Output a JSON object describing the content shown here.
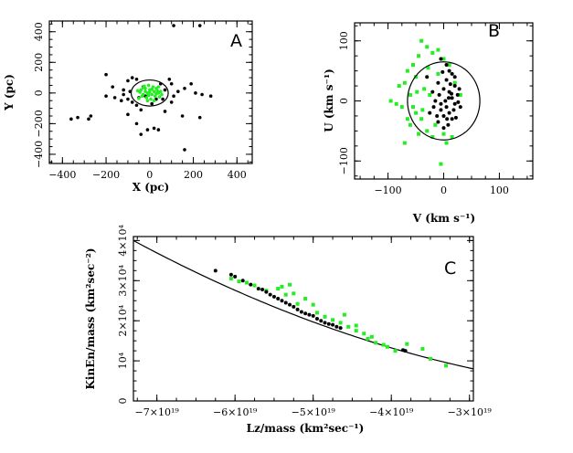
{
  "chart_data": [
    {
      "id": "A",
      "type": "scatter",
      "panel_label": "A",
      "xlabel": "X (pc)",
      "ylabel": "Y (pc)",
      "xlim": [
        -460,
        470
      ],
      "ylim": [
        -460,
        470
      ],
      "xticks": [
        -400,
        -200,
        0,
        200,
        400
      ],
      "yticks": [
        -400,
        -200,
        0,
        200,
        400
      ],
      "xtick_labels": [
        "−400",
        "−200",
        "0",
        "200",
        "400"
      ],
      "ytick_labels": [
        "−400",
        "−200",
        "0",
        "200",
        "400"
      ],
      "circle": {
        "center": [
          0,
          0
        ],
        "radius": 85
      },
      "series": [
        {
          "name": "black",
          "color": "#000000",
          "points": [
            [
              110,
              440
            ],
            [
              230,
              440
            ],
            [
              -200,
              120
            ],
            [
              -80,
              100
            ],
            [
              -60,
              90
            ],
            [
              -100,
              80
            ],
            [
              -170,
              40
            ],
            [
              -120,
              20
            ],
            [
              -90,
              10
            ],
            [
              -120,
              -10
            ],
            [
              -200,
              -20
            ],
            [
              -160,
              -30
            ],
            [
              -100,
              -40
            ],
            [
              -130,
              -50
            ],
            [
              -80,
              -60
            ],
            [
              -60,
              -80
            ],
            [
              -40,
              -110
            ],
            [
              -100,
              -140
            ],
            [
              -330,
              -160
            ],
            [
              -360,
              -170
            ],
            [
              -270,
              -150
            ],
            [
              -280,
              -170
            ],
            [
              -60,
              -200
            ],
            [
              -10,
              -240
            ],
            [
              20,
              -230
            ],
            [
              -40,
              -270
            ],
            [
              40,
              -240
            ],
            [
              70,
              -120
            ],
            [
              100,
              -60
            ],
            [
              110,
              -20
            ],
            [
              130,
              10
            ],
            [
              160,
              30
            ],
            [
              190,
              60
            ],
            [
              210,
              0
            ],
            [
              240,
              -10
            ],
            [
              280,
              -20
            ],
            [
              100,
              60
            ],
            [
              90,
              90
            ],
            [
              150,
              -150
            ],
            [
              230,
              -160
            ],
            [
              160,
              -370
            ],
            [
              70,
              20
            ],
            [
              50,
              60
            ],
            [
              -30,
              40
            ],
            [
              -20,
              -20
            ],
            [
              30,
              -40
            ],
            [
              10,
              -70
            ],
            [
              -50,
              -30
            ],
            [
              60,
              -40
            ]
          ]
        },
        {
          "name": "green",
          "color": "#22ee22",
          "points": [
            [
              -40,
              20
            ],
            [
              -30,
              -10
            ],
            [
              -20,
              30
            ],
            [
              -10,
              0
            ],
            [
              0,
              20
            ],
            [
              10,
              -10
            ],
            [
              20,
              10
            ],
            [
              30,
              30
            ],
            [
              40,
              0
            ],
            [
              -35,
              -20
            ],
            [
              -15,
              -30
            ],
            [
              5,
              -40
            ],
            [
              25,
              -20
            ],
            [
              45,
              -25
            ],
            [
              -45,
              5
            ],
            [
              -25,
              45
            ],
            [
              -5,
              50
            ],
            [
              15,
              40
            ],
            [
              35,
              15
            ],
            [
              50,
              10
            ],
            [
              -50,
              -35
            ],
            [
              -10,
              -50
            ],
            [
              20,
              -50
            ],
            [
              0,
              5
            ],
            [
              -20,
              10
            ],
            [
              30,
              -5
            ],
            [
              10,
              25
            ],
            [
              -30,
              35
            ],
            [
              40,
              40
            ],
            [
              -55,
              15
            ],
            [
              55,
              -10
            ],
            [
              -5,
              -15
            ]
          ]
        }
      ]
    },
    {
      "id": "B",
      "type": "scatter",
      "panel_label": "B",
      "xlabel": "V (km s⁻¹)",
      "ylabel": "U (km s⁻¹)",
      "xlim": [
        -160,
        160
      ],
      "ylim": [
        -130,
        130
      ],
      "xticks": [
        -100,
        0,
        100
      ],
      "yticks": [
        -100,
        0,
        100
      ],
      "xtick_labels": [
        "−100",
        "0",
        "100"
      ],
      "ytick_labels": [
        "−100",
        "0",
        "100"
      ],
      "circle": {
        "center": [
          0,
          0
        ],
        "radius": 65
      },
      "series": [
        {
          "name": "black",
          "color": "#000000",
          "points": [
            [
              -5,
              70
            ],
            [
              5,
              60
            ],
            [
              10,
              50
            ],
            [
              20,
              40
            ],
            [
              -10,
              30
            ],
            [
              0,
              20
            ],
            [
              10,
              15
            ],
            [
              15,
              5
            ],
            [
              20,
              -5
            ],
            [
              5,
              -10
            ],
            [
              -5,
              -15
            ],
            [
              0,
              -25
            ],
            [
              10,
              -20
            ],
            [
              15,
              -30
            ],
            [
              -10,
              -35
            ],
            [
              20,
              25
            ],
            [
              25,
              10
            ],
            [
              30,
              -10
            ],
            [
              -15,
              0
            ],
            [
              -20,
              15
            ],
            [
              5,
              35
            ],
            [
              -25,
              -20
            ],
            [
              -5,
              -5
            ],
            [
              8,
              -40
            ],
            [
              12,
              28
            ],
            [
              18,
              -15
            ],
            [
              -8,
              10
            ],
            [
              28,
              20
            ],
            [
              3,
              0
            ],
            [
              -12,
              -25
            ],
            [
              22,
              -28
            ],
            [
              -30,
              40
            ],
            [
              15,
              45
            ],
            [
              -2,
              48
            ],
            [
              6,
              -30
            ],
            [
              14,
              12
            ],
            [
              -18,
              -10
            ],
            [
              26,
              -2
            ],
            [
              0,
              -45
            ],
            [
              9,
              5
            ]
          ]
        },
        {
          "name": "green",
          "color": "#22ee22",
          "points": [
            [
              -40,
              100
            ],
            [
              -30,
              90
            ],
            [
              -20,
              80
            ],
            [
              -10,
              85
            ],
            [
              0,
              70
            ],
            [
              10,
              60
            ],
            [
              -45,
              75
            ],
            [
              -55,
              60
            ],
            [
              -65,
              50
            ],
            [
              -50,
              40
            ],
            [
              -70,
              30
            ],
            [
              -80,
              25
            ],
            [
              -60,
              10
            ],
            [
              -75,
              -10
            ],
            [
              -85,
              -5
            ],
            [
              -95,
              0
            ],
            [
              -50,
              -20
            ],
            [
              -40,
              -30
            ],
            [
              -60,
              -40
            ],
            [
              -30,
              -50
            ],
            [
              -20,
              -60
            ],
            [
              -45,
              -55
            ],
            [
              -70,
              -70
            ],
            [
              -5,
              -105
            ],
            [
              15,
              -60
            ],
            [
              5,
              -70
            ],
            [
              -15,
              -40
            ],
            [
              -25,
              10
            ],
            [
              -35,
              20
            ],
            [
              -10,
              45
            ],
            [
              20,
              30
            ],
            [
              -55,
              -10
            ],
            [
              -65,
              -30
            ],
            [
              -28,
              55
            ],
            [
              -48,
              15
            ],
            [
              30,
              10
            ],
            [
              -38,
              -15
            ],
            [
              0,
              -55
            ]
          ]
        }
      ]
    },
    {
      "id": "C",
      "type": "scatter",
      "panel_label": "C",
      "xlabel": "Lz/mass (km²sec⁻¹)",
      "ylabel": "KinEn/mass (km²sec⁻²)",
      "xlim": [
        -7.3e+19,
        -2.95e+19
      ],
      "ylim": [
        0,
        41000.0
      ],
      "xticks": [
        -7e+19,
        -6e+19,
        -5e+19,
        -4e+19,
        -3e+19
      ],
      "yticks": [
        0,
        10000.0,
        20000.0,
        30000.0,
        40000.0
      ],
      "xtick_labels": [
        "−7×10¹⁹",
        "−6×10¹⁹",
        "−5×10¹⁹",
        "−4×10¹⁹",
        "−3×10¹⁹"
      ],
      "ytick_labels": [
        "0",
        "10⁴",
        "2×10⁴",
        "3×10⁴",
        "4×10⁴"
      ],
      "curve": "KE = 0.5*(Lz/8500)^2 + C, passing through (-7.3e19, 4.0e4) and (-2.95e19, 0.8e4)",
      "series": [
        {
          "name": "black",
          "color": "#000000",
          "points": [
            [
              -6.25e+19,
              32500
            ],
            [
              -6.05e+19,
              31500
            ],
            [
              -6e+19,
              31000
            ],
            [
              -5.9e+19,
              30000
            ],
            [
              -5.8e+19,
              29000
            ],
            [
              -5.7e+19,
              28000
            ],
            [
              -5.65e+19,
              27800
            ],
            [
              -5.55e+19,
              26500
            ],
            [
              -5.5e+19,
              26000
            ],
            [
              -5.4e+19,
              25000
            ],
            [
              -5.35e+19,
              24500
            ],
            [
              -5.3e+19,
              24000
            ],
            [
              -5.25e+19,
              23500
            ],
            [
              -5.2e+19,
              22800
            ],
            [
              -5.15e+19,
              22200
            ],
            [
              -5.1e+19,
              21800
            ],
            [
              -5.05e+19,
              21500
            ],
            [
              -4.95e+19,
              20500
            ],
            [
              -4.9e+19,
              20000
            ],
            [
              -4.85e+19,
              19500
            ],
            [
              -4.8e+19,
              19200
            ],
            [
              -4.7e+19,
              18500
            ],
            [
              -4.65e+19,
              18200
            ],
            [
              -3.85e+19,
              12700
            ],
            [
              -3.82e+19,
              12500
            ],
            [
              -5.6e+19,
              27200
            ],
            [
              -5.45e+19,
              25500
            ],
            [
              -5e+19,
              21200
            ],
            [
              -4.75e+19,
              19000
            ]
          ]
        },
        {
          "name": "green",
          "color": "#22ee22",
          "points": [
            [
              -6.05e+19,
              30500
            ],
            [
              -5.95e+19,
              29800
            ],
            [
              -5.85e+19,
              29500
            ],
            [
              -5.75e+19,
              28800
            ],
            [
              -5.6e+19,
              27500
            ],
            [
              -5.45e+19,
              28000
            ],
            [
              -5.35e+19,
              26500
            ],
            [
              -5.25e+19,
              26800
            ],
            [
              -5.1e+19,
              25500
            ],
            [
              -5e+19,
              24000
            ],
            [
              -4.95e+19,
              22000
            ],
            [
              -4.85e+19,
              21000
            ],
            [
              -4.75e+19,
              20200
            ],
            [
              -4.65e+19,
              19500
            ],
            [
              -4.55e+19,
              18500
            ],
            [
              -4.45e+19,
              17500
            ],
            [
              -4.35e+19,
              16800
            ],
            [
              -4.25e+19,
              16000
            ],
            [
              -4.2e+19,
              14500
            ],
            [
              -4.1e+19,
              14000
            ],
            [
              -4.05e+19,
              13500
            ],
            [
              -3.95e+19,
              12500
            ],
            [
              -3.6e+19,
              13000
            ],
            [
              -3.5e+19,
              10500
            ],
            [
              -3.3e+19,
              8800
            ],
            [
              -5.4e+19,
              28500
            ],
            [
              -5.3e+19,
              29000
            ],
            [
              -4.6e+19,
              21500
            ],
            [
              -4.45e+19,
              18800
            ],
            [
              -4.3e+19,
              15500
            ],
            [
              -5.2e+19,
              24200
            ],
            [
              -3.8e+19,
              14200
            ]
          ]
        }
      ]
    }
  ]
}
